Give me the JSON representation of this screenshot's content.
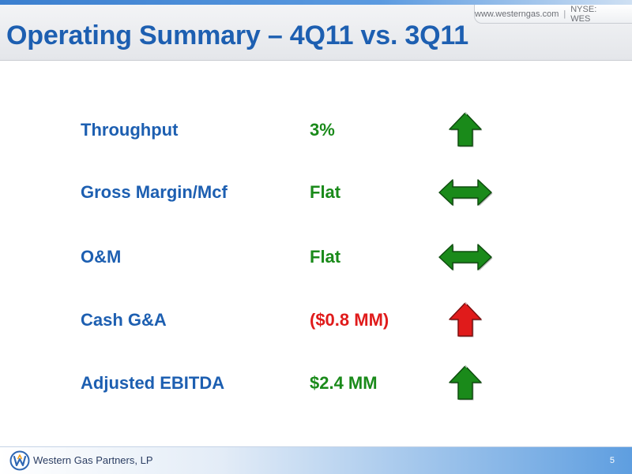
{
  "header": {
    "website": "www.westerngas.com",
    "ticker": "NYSE: WES"
  },
  "title": "Operating Summary – 4Q11 vs. 3Q11",
  "rows": [
    {
      "label": "Throughput",
      "value": "3%",
      "value_color": "#1a8a1a",
      "trend": "up",
      "trend_color": "#1a8a1a"
    },
    {
      "label": "Gross Margin/Mcf",
      "value": "Flat",
      "value_color": "#1a8a1a",
      "trend": "flat",
      "trend_color": "#1a8a1a"
    },
    {
      "label": "O&M",
      "value": "Flat",
      "value_color": "#1a8a1a",
      "trend": "flat",
      "trend_color": "#1a8a1a"
    },
    {
      "label": "Cash G&A",
      "value": "($0.8 MM)",
      "value_color": "#e01b1b",
      "trend": "up",
      "trend_color": "#e01b1b"
    },
    {
      "label": "Adjusted EBITDA",
      "value": "$2.4 MM",
      "value_color": "#1a8a1a",
      "trend": "up",
      "trend_color": "#1a8a1a"
    }
  ],
  "footer": {
    "company": "Western Gas Partners, LP",
    "page_number": "5",
    "logo_icon": "western-gas-logo-icon"
  },
  "colors": {
    "title": "#1d5fb1",
    "label": "#1d5fb1",
    "positive": "#1a8a1a",
    "negative": "#e01b1b"
  }
}
